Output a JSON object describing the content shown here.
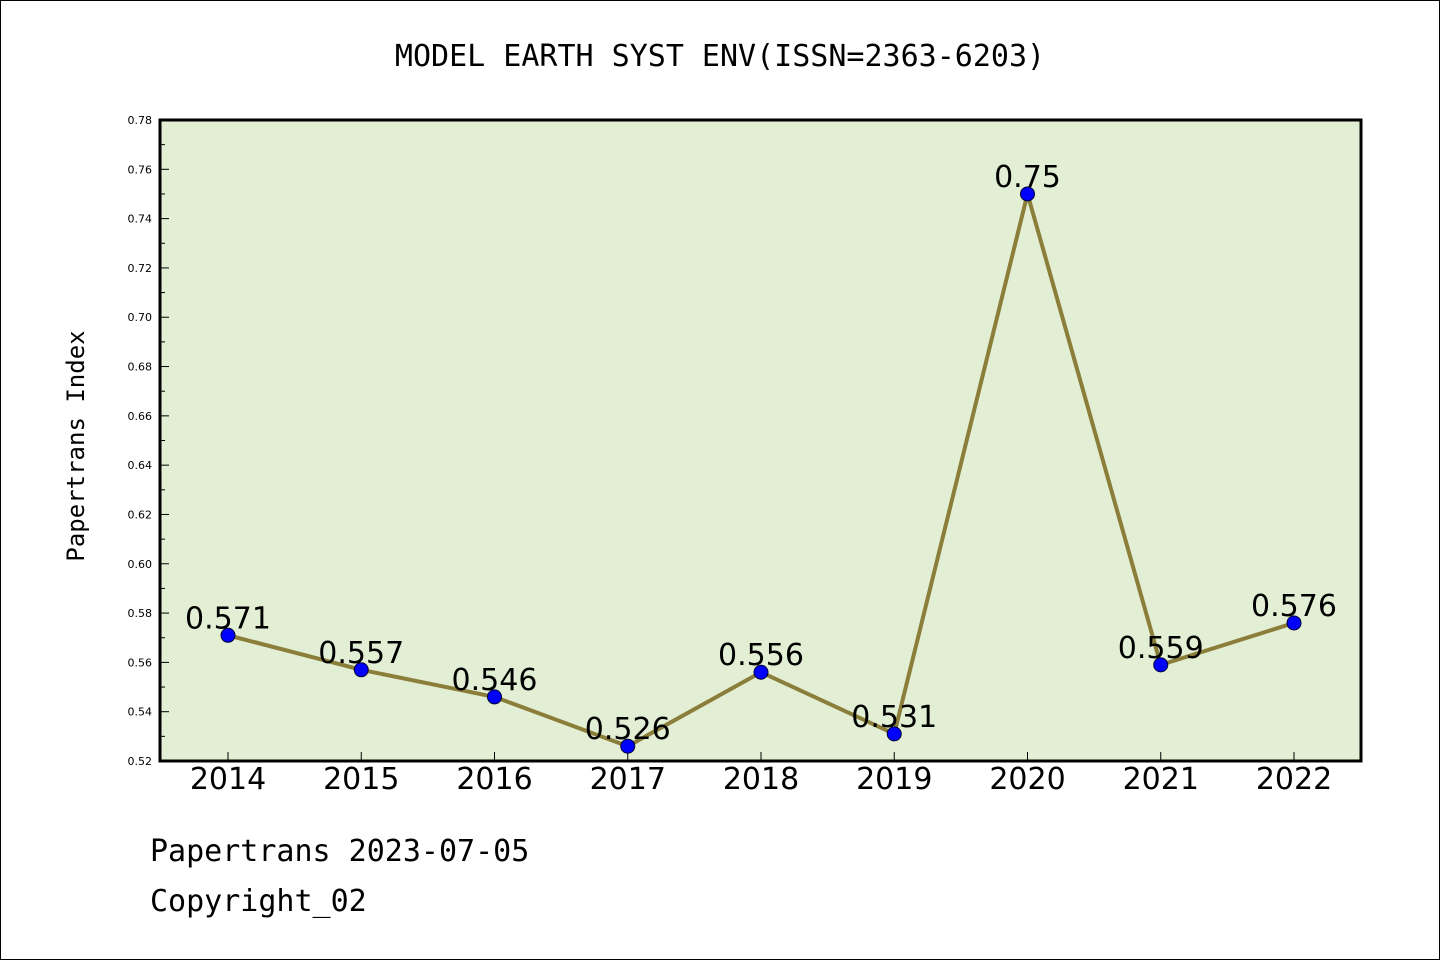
{
  "chart_data": {
    "type": "line",
    "title": "MODEL EARTH SYST ENV(ISSN=2363-6203)",
    "ylabel": "Papertrans Index",
    "xlabel": "",
    "categories": [
      "2014",
      "2015",
      "2016",
      "2017",
      "2018",
      "2019",
      "2020",
      "2021",
      "2022"
    ],
    "values": [
      0.571,
      0.557,
      0.546,
      0.526,
      0.556,
      0.531,
      0.75,
      0.559,
      0.576
    ],
    "data_labels": [
      "0.571",
      "0.557",
      "0.546",
      "0.526",
      "0.556",
      "0.531",
      "0.75",
      "0.559",
      "0.576"
    ],
    "ylim": [
      0.52,
      0.78
    ],
    "yticks": [
      "0.52",
      "0.54",
      "0.56",
      "0.58",
      "0.60",
      "0.62",
      "0.64",
      "0.66",
      "0.68",
      "0.70",
      "0.72",
      "0.74",
      "0.76",
      "0.78"
    ],
    "grid": false,
    "legend": "none",
    "colors": {
      "plot_background": "#e2efd4",
      "line": "#8b7e3a",
      "marker": "#0000ff"
    }
  },
  "footer": {
    "line1": "Papertrans 2023-07-05",
    "line2": "Copyright_02"
  }
}
